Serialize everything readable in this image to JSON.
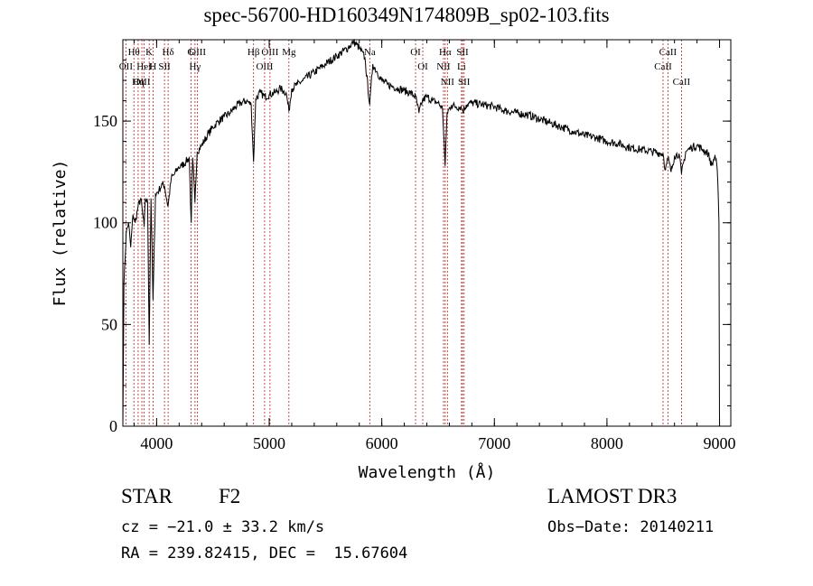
{
  "title": "spec-56700-HD160349N174809B_sp02-103.fits",
  "meta": {
    "object_type": "STAR",
    "subclass": "F2",
    "survey": "LAMOST DR3",
    "cz": "cz = −21.0 ± 33.2 km/s",
    "obs_date": "Obs−Date: 20140211",
    "radec": "RA = 239.82415, DEC =  15.67604"
  },
  "chart_data": {
    "type": "line",
    "title": "spec-56700-HD160349N174809B_sp02-103.fits",
    "xlabel": "Wavelength (Å)",
    "ylabel": "Flux (relative)",
    "xlim": [
      3700,
      9100
    ],
    "ylim": [
      0,
      190
    ],
    "x_ticks": [
      4000,
      5000,
      6000,
      7000,
      8000,
      9000
    ],
    "y_ticks": [
      0,
      50,
      100,
      150
    ],
    "line_color": "#000000",
    "marker_color": "#b22222",
    "series": [
      {
        "x": [
          3700,
          3710,
          3730,
          3750,
          3770,
          3790,
          3810,
          3835,
          3860,
          3889,
          3900,
          3920,
          3934,
          3950,
          3968,
          3990,
          4020,
          4050,
          4070,
          4101,
          4130,
          4160,
          4190,
          4220,
          4260,
          4290,
          4307,
          4320,
          4340,
          4360,
          4400,
          4450,
          4500,
          4550,
          4600,
          4650,
          4700,
          4750,
          4800,
          4840,
          4861,
          4880,
          4920,
          4960,
          5000,
          5050,
          5100,
          5150,
          5175,
          5200,
          5250,
          5300,
          5400,
          5500,
          5600,
          5700,
          5750,
          5800,
          5850,
          5893,
          5920,
          5960,
          6000,
          6050,
          6100,
          6150,
          6200,
          6250,
          6300,
          6330,
          6360,
          6400,
          6450,
          6500,
          6540,
          6563,
          6580,
          6620,
          6660,
          6700,
          6720,
          6750,
          6800,
          6900,
          7000,
          7100,
          7200,
          7300,
          7400,
          7500,
          7600,
          7700,
          7800,
          7900,
          8000,
          8100,
          8200,
          8300,
          8400,
          8498,
          8520,
          8542,
          8570,
          8600,
          8640,
          8662,
          8700,
          8750,
          8800,
          8850,
          8900,
          8930,
          8960,
          8980,
          8995,
          9000
        ],
        "y": [
          0,
          70,
          95,
          100,
          88,
          104,
          100,
          108,
          112,
          98,
          112,
          110,
          40,
          112,
          62,
          114,
          116,
          119,
          118,
          108,
          122,
          124,
          127,
          128,
          130,
          132,
          100,
          132,
          110,
          135,
          138,
          143,
          147,
          150,
          152,
          154,
          157,
          159,
          160,
          158,
          130,
          161,
          164,
          162,
          163,
          164,
          166,
          164,
          155,
          166,
          168,
          170,
          174,
          178,
          182,
          186,
          189,
          186,
          181,
          158,
          178,
          174,
          170,
          168,
          167,
          166,
          165,
          164,
          162,
          154,
          160,
          162,
          160,
          159,
          156,
          128,
          154,
          158,
          157,
          157,
          155,
          158,
          159,
          158,
          157,
          155,
          154,
          153,
          151,
          149,
          147,
          145,
          143,
          142,
          140,
          139,
          137,
          136,
          135,
          134,
          126,
          132,
          125,
          133,
          134,
          124,
          135,
          137,
          138,
          136,
          134,
          128,
          133,
          126,
          100,
          0
        ]
      }
    ],
    "lines": [
      {
        "name": "Hθ",
        "x": 3798
      },
      {
        "name": "OII",
        "x": 3727
      },
      {
        "name": "OIII",
        "x": 3869
      },
      {
        "name": "K",
        "x": 3934
      },
      {
        "name": "HeI",
        "x": 3889
      },
      {
        "name": "Hη",
        "x": 3836
      },
      {
        "name": "Hδ",
        "x": 4102
      },
      {
        "name": "SII",
        "x": 4070
      },
      {
        "name": "H",
        "x": 3968
      },
      {
        "name": "OIII",
        "x": 4363
      },
      {
        "name": "Hγ",
        "x": 4341
      },
      {
        "name": "G",
        "x": 4305
      },
      {
        "name": "OIII",
        "x": 5007
      },
      {
        "name": "OIII",
        "x": 4959
      },
      {
        "name": "Hβ",
        "x": 4861
      },
      {
        "name": "Mg",
        "x": 5175
      },
      {
        "name": "Na",
        "x": 5893
      },
      {
        "name": "OI",
        "x": 6300
      },
      {
        "name": "OI",
        "x": 6364
      },
      {
        "name": "Hα",
        "x": 6563
      },
      {
        "name": "NII",
        "x": 6548
      },
      {
        "name": "NII",
        "x": 6583
      },
      {
        "name": "SII",
        "x": 6717
      },
      {
        "name": "Li",
        "x": 6708
      },
      {
        "name": "SII",
        "x": 6731
      },
      {
        "name": "CaII",
        "x": 8542
      },
      {
        "name": "CaII",
        "x": 8498
      },
      {
        "name": "CaII",
        "x": 8662
      }
    ]
  }
}
